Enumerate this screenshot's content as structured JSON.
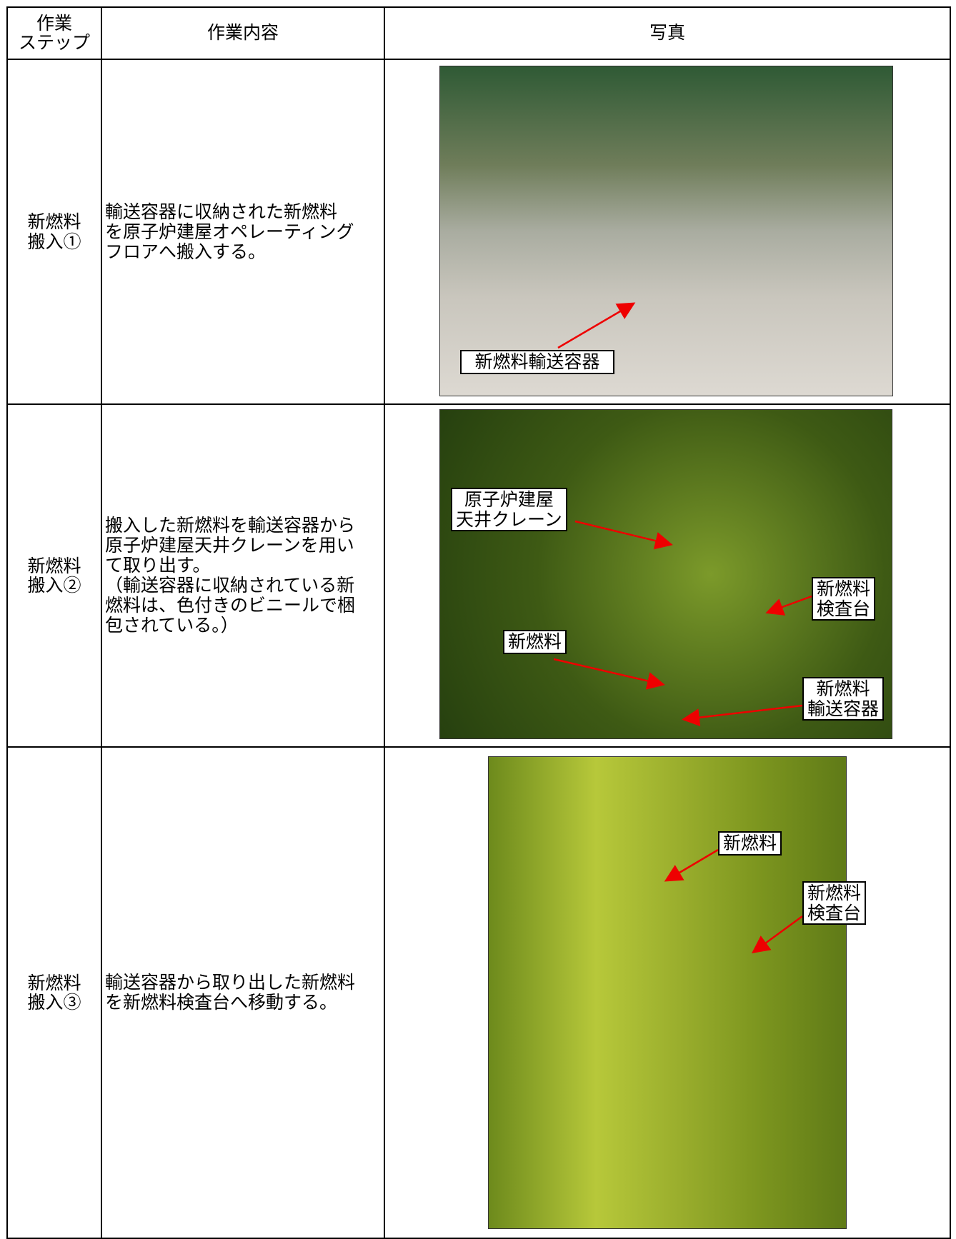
{
  "table": {
    "headers": [
      "作業\nステップ",
      "作業内容",
      "写真"
    ],
    "rows": [
      {
        "step": "新燃料\n搬入①",
        "content": "輸送容器に収納された新燃料\nを原子炉建屋オペレーティング\nフロアへ搬入する。",
        "photo_labels": [
          "新燃料輸送容器"
        ]
      },
      {
        "step": "新燃料\n搬入②",
        "content": "搬入した新燃料を輸送容器から\n原子炉建屋天井クレーンを用い\nて取り出す。\n（輸送容器に収納されている新\n燃料は、色付きのビニールで梱\n包されている。）",
        "photo_labels": [
          "原子炉建屋\n天井クレーン",
          "新燃料\n検査台",
          "新燃料",
          "新燃料\n輸送容器"
        ]
      },
      {
        "step": "新燃料\n搬入③",
        "content": "輸送容器から取り出した新燃料\nを新燃料検査台へ移動する。",
        "photo_labels": [
          "新燃料",
          "新燃料\n検査台"
        ]
      }
    ]
  }
}
